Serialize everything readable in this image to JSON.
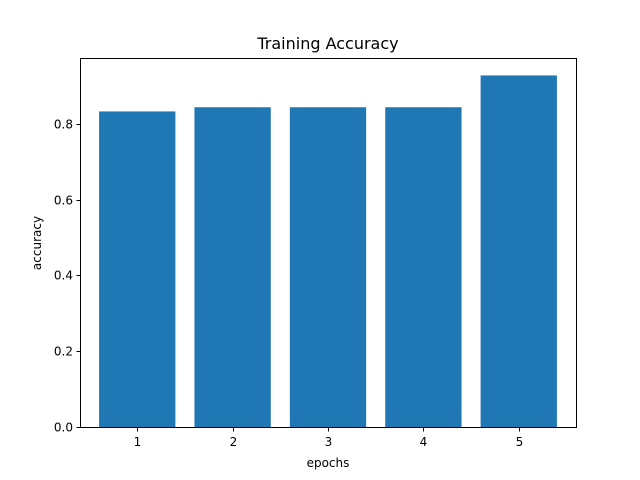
{
  "chart_data": {
    "type": "bar",
    "title": "Training Accuracy",
    "xlabel": "epochs",
    "ylabel": "accuracy",
    "categories": [
      "1",
      "2",
      "3",
      "4",
      "5"
    ],
    "values": [
      0.833,
      0.844,
      0.844,
      0.844,
      0.928
    ],
    "ylim": [
      0,
      0.974
    ],
    "yticks": [
      0.0,
      0.2,
      0.4,
      0.6,
      0.8
    ],
    "ytick_labels": [
      "0.0",
      "0.2",
      "0.4",
      "0.6",
      "0.8"
    ],
    "grid": false,
    "legend": "none",
    "colors": {
      "bar": "#1f77b4",
      "axis": "#000000",
      "background": "#ffffff"
    }
  }
}
